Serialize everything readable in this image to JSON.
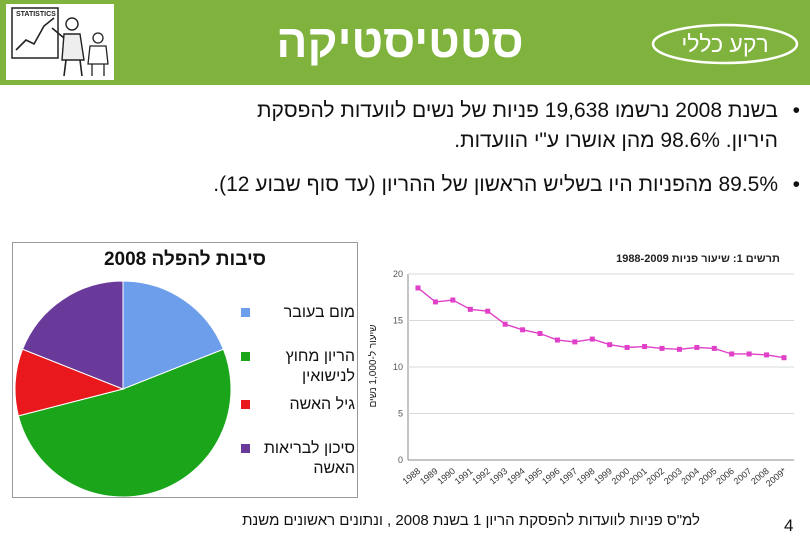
{
  "header": {
    "title": "סטטיסטיקה",
    "brand": "רקע כללי",
    "logo_text": "STATISTICS",
    "background": "#7fb33d"
  },
  "bullets": [
    {
      "line1": "בשנת 2008 נרשמו 19,638 פניות של נשים לוועדות להפסקת",
      "line2": "היריון. 98.6% מהן אושרו ע\"י הוועדות."
    },
    {
      "line1": "89.5% מהפניות היו בשליש הראשון של ההריון (עד סוף שבוע 12).",
      "line2": ""
    }
  ],
  "pie_chart": {
    "title": "סיבות להפלה 2008",
    "legend": [
      {
        "label": "מום בעובר",
        "color": "#6d9eeb"
      },
      {
        "label": "הריון מחוץ לנישואין",
        "color": "#1aa51a"
      },
      {
        "label": "גיל האשה",
        "color": "#e8181d"
      },
      {
        "label": "סיכון לבריאות האשה",
        "color": "#6a3a9a"
      }
    ]
  },
  "line_chart_labels": {
    "title": "תרשים 1: שיעור פניות 1988-2009",
    "ylabel": "שיעור ל-1,000 נשים"
  },
  "chart_data": [
    {
      "type": "pie",
      "title": "סיבות להפלה 2008",
      "categories": [
        "מום בעובר",
        "הריון מחוץ לנישואין",
        "גיל האשה",
        "סיכון לבריאות האשה"
      ],
      "values": [
        19,
        52,
        10,
        19
      ]
    },
    {
      "type": "line",
      "title": "תרשים 1: שיעור פניות 1988-2009",
      "ylabel": "שיעור ל-1,000 נשים",
      "xlabel": "",
      "x": [
        "1988",
        "1989",
        "1990",
        "1991",
        "1992",
        "1993",
        "1994",
        "1995",
        "1996",
        "1997",
        "1998",
        "1999",
        "2000",
        "2001",
        "2002",
        "2003",
        "2004",
        "2005",
        "2006",
        "2007",
        "2008",
        "2009*"
      ],
      "y_tick_labels": [
        "0",
        "5",
        "10",
        "15",
        "20"
      ],
      "series": [
        {
          "color": "#e040c8",
          "values": [
            18.5,
            17.0,
            17.2,
            16.2,
            16.0,
            14.6,
            14.0,
            13.6,
            12.9,
            12.7,
            13.0,
            12.4,
            12.1,
            12.2,
            12.0,
            11.9,
            12.1,
            12.0,
            11.4,
            11.4,
            11.3,
            11.0
          ]
        }
      ],
      "ylim": [
        0,
        20
      ],
      "grid": true,
      "legend": "none"
    }
  ],
  "footer": {
    "source": "למ\"ס פניות לוועדות להפסקת הריון 1 בשנת 2008 , ונתונים ראשונים משנת",
    "page_number": "4"
  }
}
